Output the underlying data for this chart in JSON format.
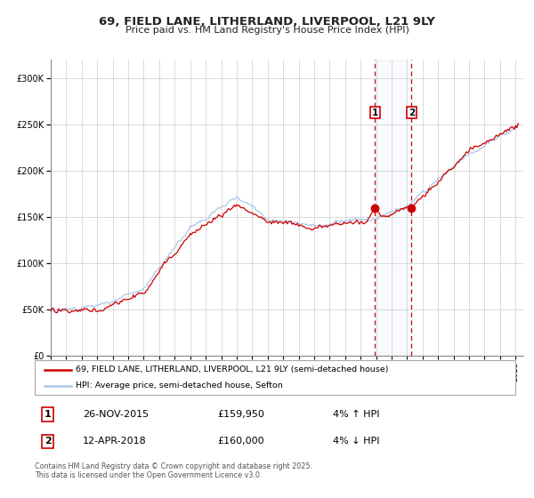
{
  "title": "69, FIELD LANE, LITHERLAND, LIVERPOOL, L21 9LY",
  "subtitle": "Price paid vs. HM Land Registry's House Price Index (HPI)",
  "background_color": "#ffffff",
  "grid_color": "#cccccc",
  "hpi_color": "#aec6e8",
  "price_color": "#cc0000",
  "point1_date_num": 2015.91,
  "point2_date_num": 2018.28,
  "point1_price": 159950,
  "point2_price": 160000,
  "sale1_date": "26-NOV-2015",
  "sale1_price": "£159,950",
  "sale1_hpi": "4% ↑ HPI",
  "sale2_date": "12-APR-2018",
  "sale2_price": "£160,000",
  "sale2_hpi": "4% ↓ HPI",
  "legend_label1": "69, FIELD LANE, LITHERLAND, LIVERPOOL, L21 9LY (semi-detached house)",
  "legend_label2": "HPI: Average price, semi-detached house, Sefton",
  "footer": "Contains HM Land Registry data © Crown copyright and database right 2025.\nThis data is licensed under the Open Government Licence v3.0.",
  "ylim": [
    0,
    320000
  ],
  "xlim_start": 1995.0,
  "xlim_end": 2025.5
}
